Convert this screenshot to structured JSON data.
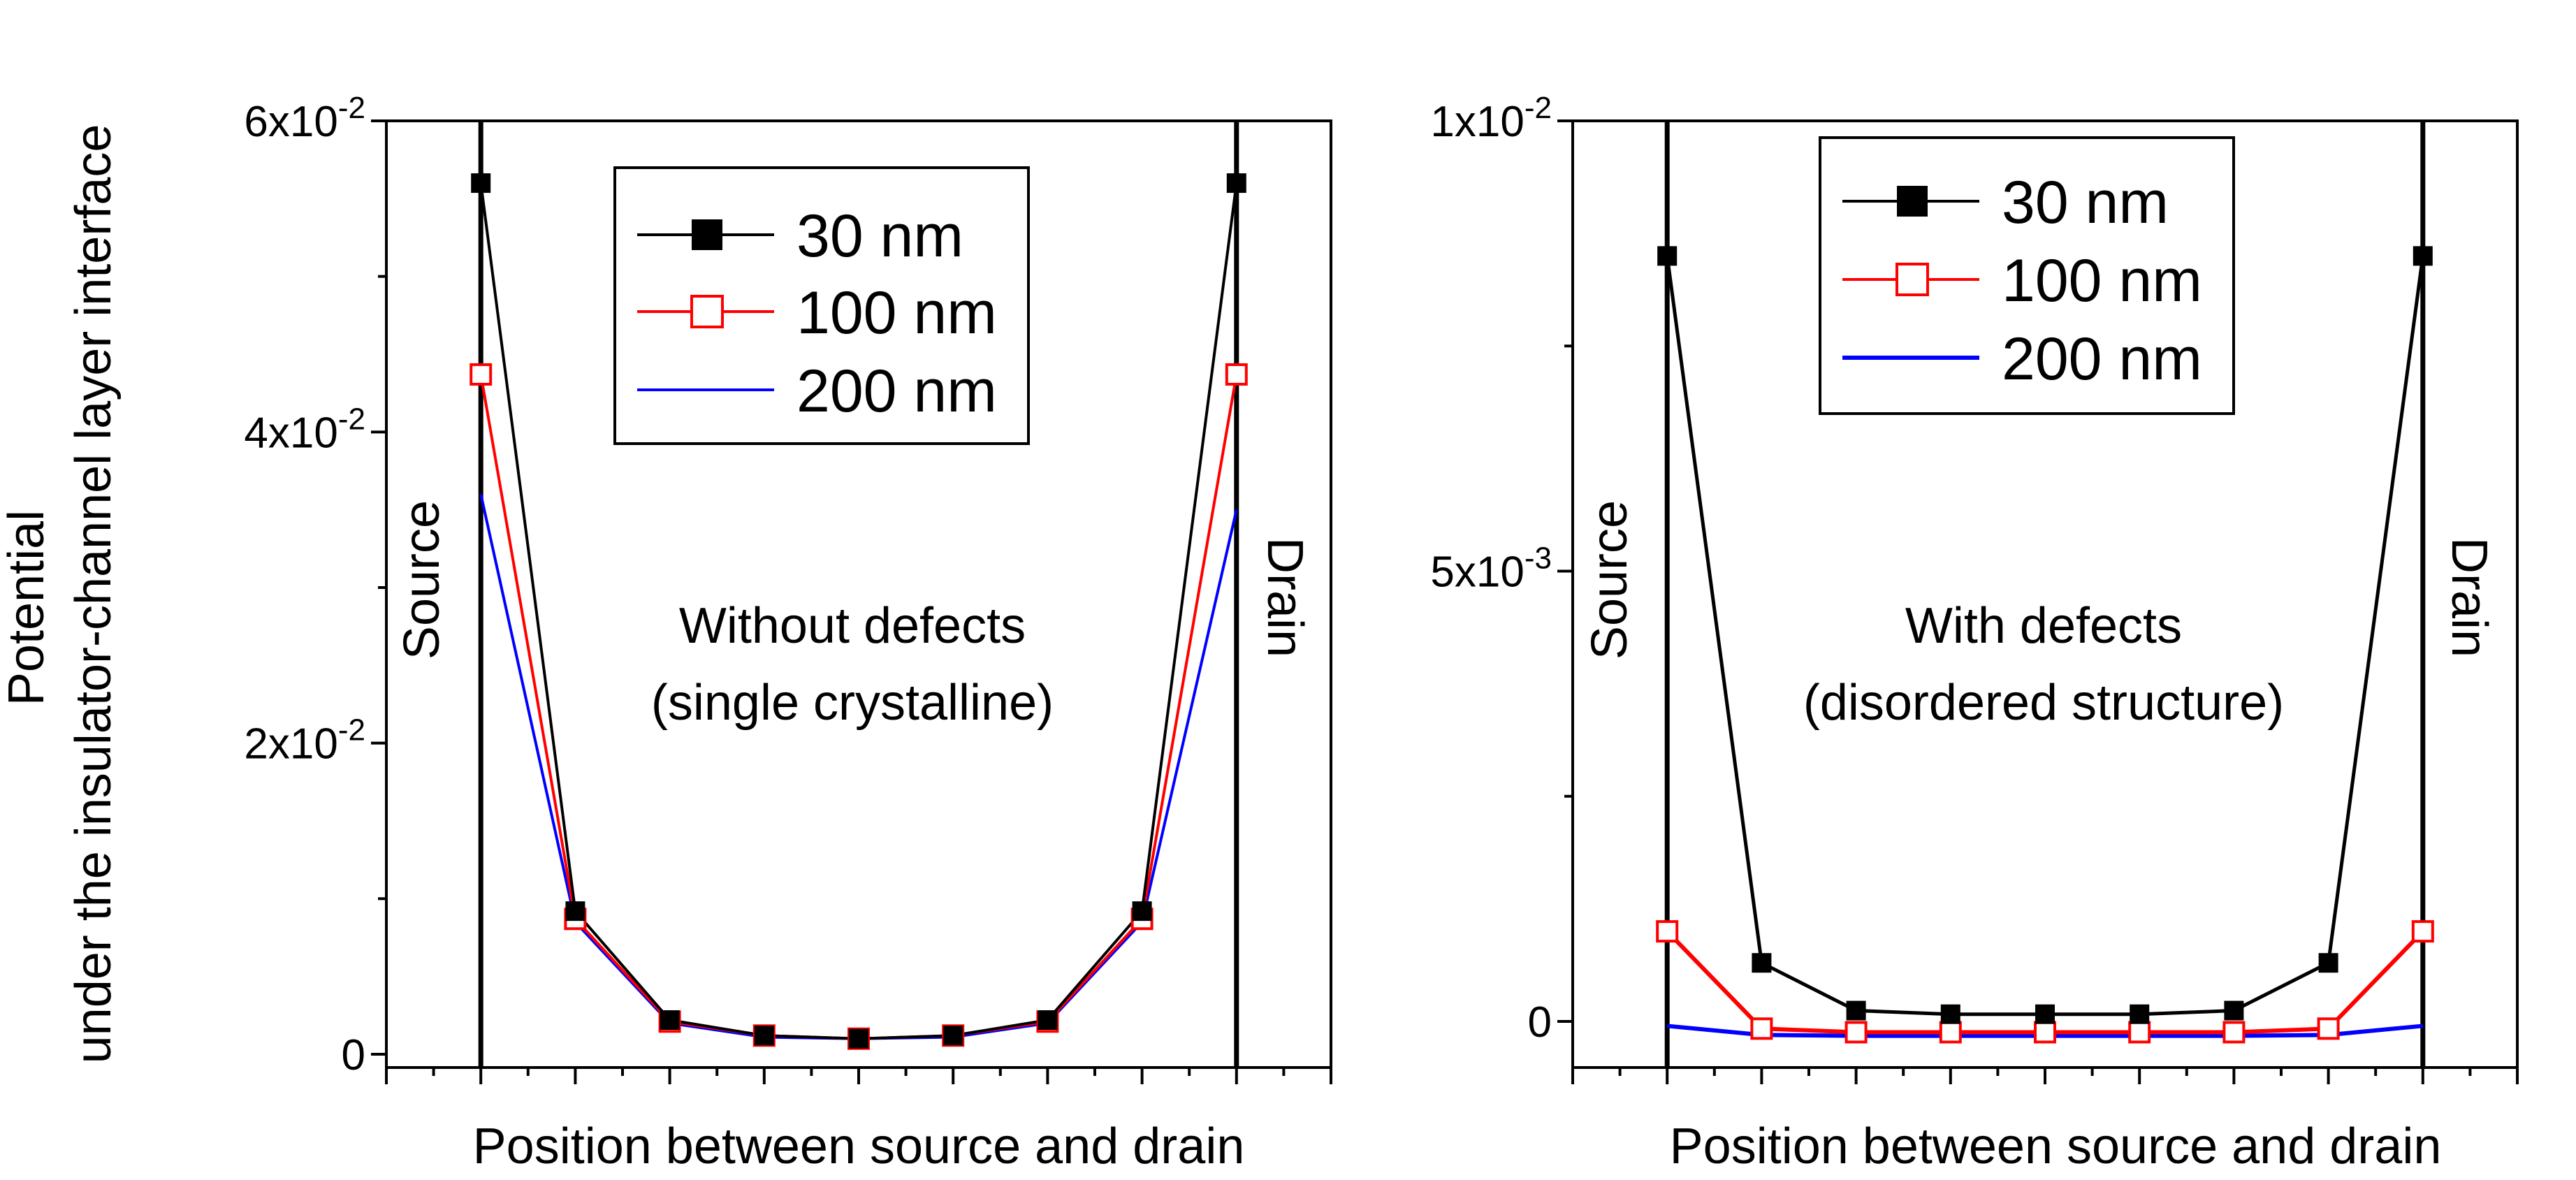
{
  "figure": {
    "y_axis_title_line1": "Potential",
    "y_axis_title_line2": "under the insulator-channel layer interface"
  },
  "chart_data": [
    {
      "type": "line",
      "xlabel": "Position between source and drain",
      "ylim": [
        -0.0005,
        0.06
      ],
      "xlim": [
        -1,
        9
      ],
      "y_ticks": [
        {
          "value": 0,
          "label": "0",
          "exp": ""
        },
        {
          "value": 0.02,
          "label": "2x10",
          "exp": "-2"
        },
        {
          "value": 0.04,
          "label": "4x10",
          "exp": "-2"
        },
        {
          "value": 0.06,
          "label": "6x10",
          "exp": "-2"
        }
      ],
      "annotation_lines": [
        "Without defects",
        "(single crystalline)"
      ],
      "source_label": "Source",
      "drain_label": "Drain",
      "x": [
        0,
        1,
        2,
        3,
        4,
        5,
        6,
        7,
        8
      ],
      "series": [
        {
          "name": "30 nm",
          "color": "#000000",
          "marker": "filled-square",
          "values": [
            0.056,
            0.0092,
            0.0022,
            0.0012,
            0.001,
            0.0012,
            0.0022,
            0.0092,
            0.056
          ]
        },
        {
          "name": "100 nm",
          "color": "#ff0000",
          "marker": "open-square",
          "values": [
            0.0437,
            0.0087,
            0.0021,
            0.0012,
            0.001,
            0.0012,
            0.0021,
            0.0087,
            0.0437
          ]
        },
        {
          "name": "200 nm",
          "color": "#0000ff",
          "marker": "none",
          "values": [
            0.036,
            0.0085,
            0.002,
            0.0011,
            0.001,
            0.0011,
            0.002,
            0.0085,
            0.035
          ]
        }
      ]
    },
    {
      "type": "line",
      "xlabel": "Position between source and drain",
      "ylim": [
        -0.0005,
        0.01
      ],
      "xlim": [
        -1,
        9
      ],
      "y_ticks": [
        {
          "value": 0,
          "label": "0",
          "exp": ""
        },
        {
          "value": 0.005,
          "label": "5x10",
          "exp": "-3"
        },
        {
          "value": 0.01,
          "label": "1x10",
          "exp": "-2"
        }
      ],
      "annotation_lines": [
        "With defects",
        "(disordered structure)"
      ],
      "source_label": "Source",
      "drain_label": "Drain",
      "x": [
        0,
        1,
        2,
        3,
        4,
        5,
        6,
        7,
        8
      ],
      "series": [
        {
          "name": "30 nm",
          "color": "#000000",
          "marker": "filled-square",
          "values": [
            0.0085,
            0.00065,
            0.00012,
            8e-05,
            8e-05,
            8e-05,
            0.00012,
            0.00065,
            0.0085
          ]
        },
        {
          "name": "100 nm",
          "color": "#ff0000",
          "marker": "open-square",
          "values": [
            0.001,
            -8e-05,
            -0.00012,
            -0.00012,
            -0.00012,
            -0.00012,
            -0.00012,
            -8e-05,
            0.001
          ]
        },
        {
          "name": "200 nm",
          "color": "#0000ff",
          "marker": "none",
          "values": [
            -5e-05,
            -0.00015,
            -0.00016,
            -0.00016,
            -0.00016,
            -0.00016,
            -0.00016,
            -0.00015,
            -5e-05
          ]
        }
      ]
    }
  ]
}
